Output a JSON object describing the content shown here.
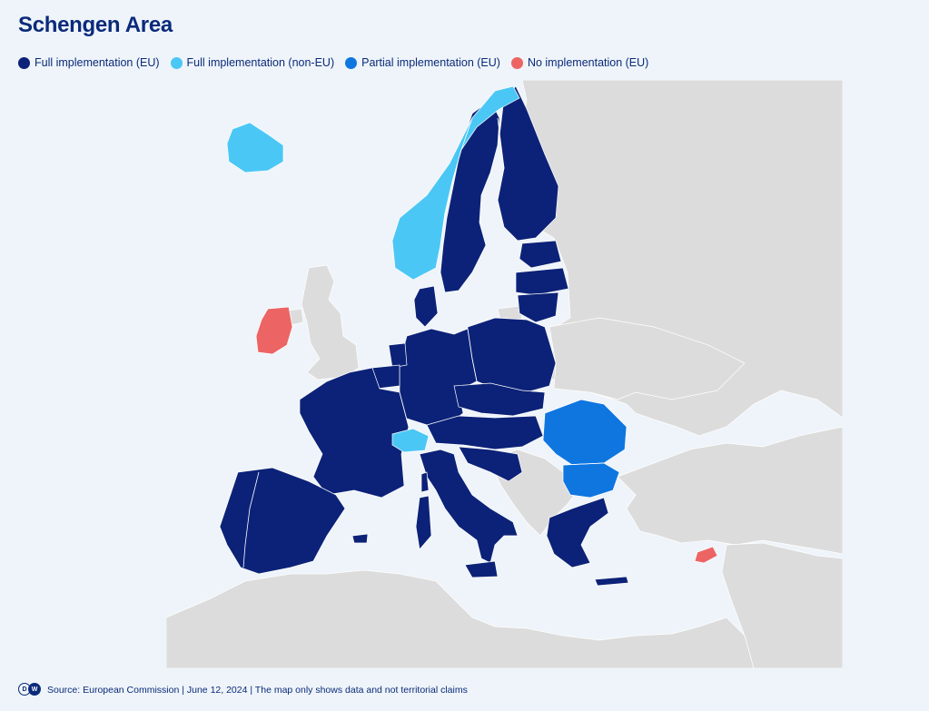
{
  "title": "Schengen Area",
  "legend": [
    {
      "label": "Full implementation (EU)",
      "color": "#0c2278"
    },
    {
      "label": "Full implementation (non-EU)",
      "color": "#4bc7f5"
    },
    {
      "label": "Partial implementation (EU)",
      "color": "#0f76e0"
    },
    {
      "label": "No implementation (EU)",
      "color": "#ec6464"
    }
  ],
  "map": {
    "colors": {
      "full_eu": "#0c2278",
      "full_non_eu": "#4bc7f5",
      "partial_eu": "#0f76e0",
      "none_eu": "#ec6464",
      "other_land": "#dddcdc",
      "sea": "#eef4f9",
      "borders": "#ffffff"
    },
    "countries": {
      "full_eu": [
        "Sweden",
        "Finland",
        "Estonia",
        "Latvia",
        "Lithuania",
        "Poland",
        "Germany",
        "Denmark",
        "Netherlands",
        "Belgium",
        "Luxembourg",
        "France",
        "Spain",
        "Portugal",
        "Italy",
        "Austria",
        "Czechia",
        "Slovakia",
        "Hungary",
        "Slovenia",
        "Croatia",
        "Greece",
        "Malta"
      ],
      "full_non_eu": [
        "Iceland",
        "Norway",
        "Switzerland",
        "Liechtenstein"
      ],
      "partial_eu": [
        "Romania",
        "Bulgaria"
      ],
      "none_eu": [
        "Ireland",
        "Cyprus"
      ]
    }
  },
  "footer": {
    "logo_text_left": "D",
    "logo_text_right": "W",
    "source": "Source: European Commission | June 12, 2024 | The map only shows data and not territorial claims"
  }
}
